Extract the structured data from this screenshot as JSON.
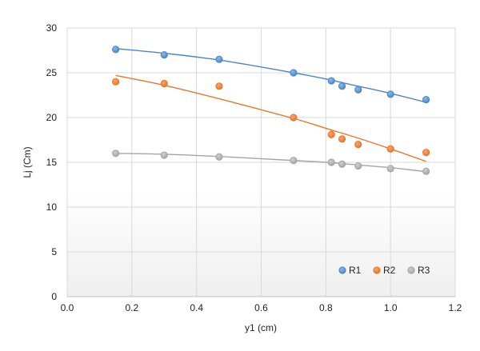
{
  "chart_data": {
    "type": "scatter",
    "title": "",
    "xlabel": "y1 (cm)",
    "ylabel": "Lj (Cm)",
    "xlim": [
      0,
      1.2
    ],
    "ylim": [
      0,
      30
    ],
    "x_ticks": [
      0,
      0.2,
      0.4,
      0.6,
      0.8,
      1.0,
      1.2
    ],
    "x_tick_labels": [
      "0.0",
      "0.2",
      "0.4",
      "0.6",
      "0.8",
      "1.0",
      "1.2"
    ],
    "y_ticks": [
      0,
      5,
      10,
      15,
      20,
      25,
      30
    ],
    "y_tick_labels": [
      "0",
      "5",
      "10",
      "15",
      "20",
      "25",
      "30"
    ],
    "grid": true,
    "legend_position": "bottom-right",
    "series": [
      {
        "name": "R1",
        "color": "#4a86c8",
        "x": [
          0.15,
          0.3,
          0.47,
          0.7,
          0.817,
          0.85,
          0.9,
          1.0,
          1.11
        ],
        "y": [
          27.6,
          27.0,
          26.5,
          25.0,
          24.1,
          23.5,
          23.1,
          22.6,
          22.0
        ],
        "trendline": [
          [
            0.15,
            27.7
          ],
          [
            0.3,
            27.18
          ],
          [
            0.47,
            26.42
          ],
          [
            0.7,
            25.0
          ],
          [
            0.8,
            24.3
          ],
          [
            0.9,
            23.5
          ],
          [
            1.0,
            22.7
          ],
          [
            1.11,
            21.7
          ]
        ]
      },
      {
        "name": "R2",
        "color": "#e8762b",
        "x": [
          0.15,
          0.3,
          0.47,
          0.7,
          0.817,
          0.85,
          0.9,
          1.0,
          1.11
        ],
        "y": [
          24.0,
          23.8,
          23.5,
          20.0,
          18.1,
          17.6,
          17.0,
          16.5,
          16.1
        ],
        "trendline": [
          [
            0.15,
            24.7
          ],
          [
            0.3,
            23.6
          ],
          [
            0.47,
            22.1
          ],
          [
            0.7,
            19.9
          ],
          [
            0.8,
            18.8
          ],
          [
            0.9,
            17.7
          ],
          [
            1.0,
            16.5
          ],
          [
            1.11,
            15.1
          ]
        ]
      },
      {
        "name": "R3",
        "color": "#a5a5a5",
        "x": [
          0.15,
          0.3,
          0.47,
          0.7,
          0.817,
          0.85,
          0.9,
          1.0,
          1.11
        ],
        "y": [
          16.0,
          15.8,
          15.6,
          15.2,
          15.0,
          14.8,
          14.6,
          14.3,
          14.0
        ],
        "trendline": [
          [
            0.15,
            16.0
          ],
          [
            0.3,
            15.9
          ],
          [
            0.47,
            15.65
          ],
          [
            0.7,
            15.2
          ],
          [
            0.8,
            15.0
          ],
          [
            0.9,
            14.7
          ],
          [
            1.0,
            14.4
          ],
          [
            1.11,
            13.95
          ]
        ]
      }
    ]
  }
}
